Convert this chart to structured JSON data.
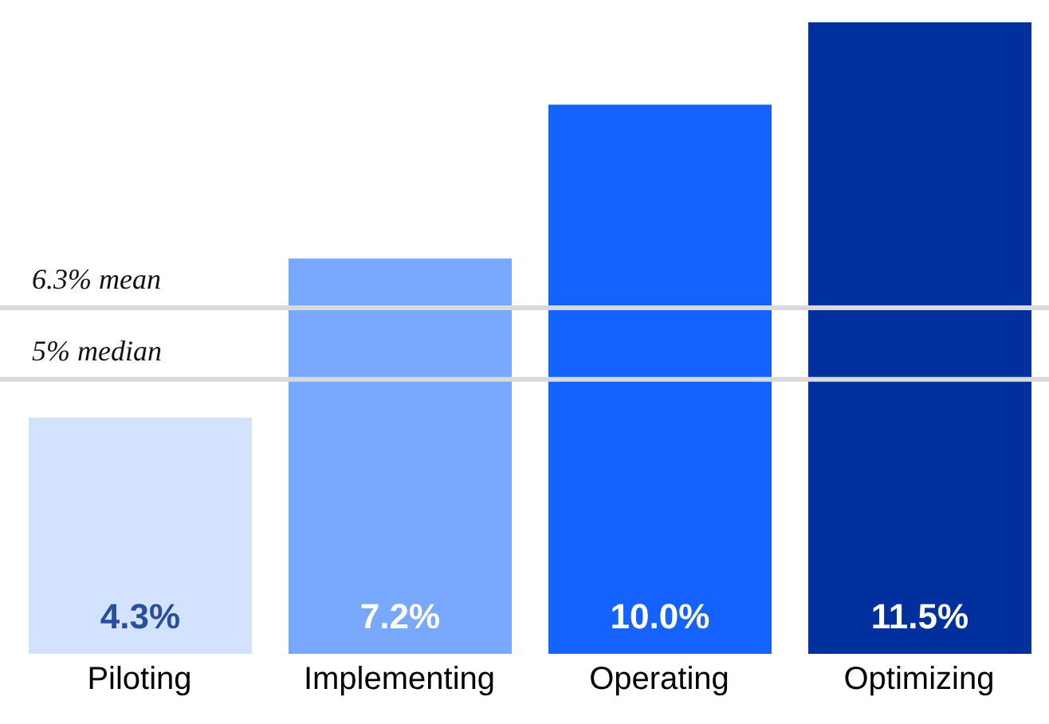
{
  "chart_data": {
    "type": "bar",
    "categories": [
      "Piloting",
      "Implementing",
      "Operating",
      "Optimizing"
    ],
    "values": [
      4.3,
      7.2,
      10.0,
      11.5
    ],
    "colors": [
      "#d3e2ff",
      "#78a8ff",
      "#1562ff",
      "#002f9e"
    ],
    "value_labels": [
      "4.3%",
      "7.2%",
      "10.0%",
      "11.5%"
    ],
    "ylim": [
      0,
      11.5
    ],
    "ref_lines": [
      {
        "axis": "y",
        "value": 6.3,
        "label": "6.3% mean",
        "color": "#d9d9d9"
      },
      {
        "axis": "y",
        "value": 5,
        "label": "5% median",
        "color": "#d9d9d9"
      }
    ],
    "tick_labels": "x"
  }
}
